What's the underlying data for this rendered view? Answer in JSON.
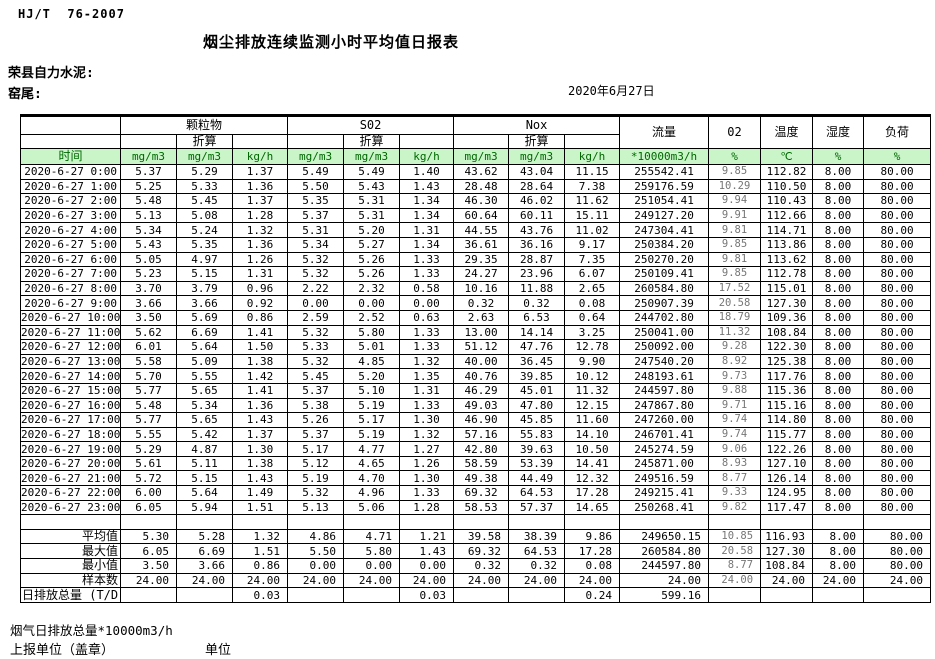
{
  "header": {
    "standard": "HJ/T  76-2007",
    "title": "烟尘排放连续监测小时平均值日报表",
    "company": "荣县自力水泥:",
    "location": "窑尾:",
    "date": "2020年6月27日"
  },
  "colors": {
    "unit_row_bg": "#c9f5c9",
    "unit_row_text": "#006600",
    "grid": "#000000"
  },
  "table": {
    "groups": {
      "time": "时间",
      "pm": "颗粒物",
      "so2": "S02",
      "nox": "Nox",
      "conv": "折算",
      "flow": "流量",
      "o2": "02",
      "temp": "温度",
      "humidity": "湿度",
      "load": "负荷"
    },
    "units": {
      "mg": "mg/m3",
      "kg": "kg/h",
      "flow": "*10000m3/h",
      "pct": "%",
      "temp": "℃"
    },
    "rows": [
      {
        "time": "2020-6-27 0:00",
        "v": [
          "5.37",
          "5.29",
          "1.37",
          "5.49",
          "5.49",
          "1.40",
          "43.62",
          "43.04",
          "11.15",
          "255542.41",
          "9.85",
          "112.82",
          "8.00",
          "80.00"
        ]
      },
      {
        "time": "2020-6-27 1:00",
        "v": [
          "5.25",
          "5.33",
          "1.36",
          "5.50",
          "5.43",
          "1.43",
          "28.48",
          "28.64",
          "7.38",
          "259176.59",
          "10.29",
          "110.50",
          "8.00",
          "80.00"
        ]
      },
      {
        "time": "2020-6-27 2:00",
        "v": [
          "5.48",
          "5.45",
          "1.37",
          "5.35",
          "5.31",
          "1.34",
          "46.30",
          "46.02",
          "11.62",
          "251054.41",
          "9.94",
          "110.43",
          "8.00",
          "80.00"
        ]
      },
      {
        "time": "2020-6-27 3:00",
        "v": [
          "5.13",
          "5.08",
          "1.28",
          "5.37",
          "5.31",
          "1.34",
          "60.64",
          "60.11",
          "15.11",
          "249127.20",
          "9.91",
          "112.66",
          "8.00",
          "80.00"
        ]
      },
      {
        "time": "2020-6-27 4:00",
        "v": [
          "5.34",
          "5.24",
          "1.32",
          "5.31",
          "5.20",
          "1.31",
          "44.55",
          "43.76",
          "11.02",
          "247304.41",
          "9.81",
          "114.71",
          "8.00",
          "80.00"
        ]
      },
      {
        "time": "2020-6-27 5:00",
        "v": [
          "5.43",
          "5.35",
          "1.36",
          "5.34",
          "5.27",
          "1.34",
          "36.61",
          "36.16",
          "9.17",
          "250384.20",
          "9.85",
          "113.86",
          "8.00",
          "80.00"
        ]
      },
      {
        "time": "2020-6-27 6:00",
        "v": [
          "5.05",
          "4.97",
          "1.26",
          "5.32",
          "5.26",
          "1.33",
          "29.35",
          "28.87",
          "7.35",
          "250270.20",
          "9.81",
          "113.62",
          "8.00",
          "80.00"
        ]
      },
      {
        "time": "2020-6-27 7:00",
        "v": [
          "5.23",
          "5.15",
          "1.31",
          "5.32",
          "5.26",
          "1.33",
          "24.27",
          "23.96",
          "6.07",
          "250109.41",
          "9.85",
          "112.78",
          "8.00",
          "80.00"
        ]
      },
      {
        "time": "2020-6-27 8:00",
        "v": [
          "3.70",
          "3.79",
          "0.96",
          "2.22",
          "2.32",
          "0.58",
          "10.16",
          "11.88",
          "2.65",
          "260584.80",
          "17.52",
          "115.01",
          "8.00",
          "80.00"
        ]
      },
      {
        "time": "2020-6-27 9:00",
        "v": [
          "3.66",
          "3.66",
          "0.92",
          "0.00",
          "0.00",
          "0.00",
          "0.32",
          "0.32",
          "0.08",
          "250907.39",
          "20.58",
          "127.30",
          "8.00",
          "80.00"
        ]
      },
      {
        "time": "2020-6-27 10:00",
        "v": [
          "3.50",
          "5.69",
          "0.86",
          "2.59",
          "2.52",
          "0.63",
          "2.63",
          "6.53",
          "0.64",
          "244702.80",
          "18.79",
          "109.36",
          "8.00",
          "80.00"
        ]
      },
      {
        "time": "2020-6-27 11:00",
        "v": [
          "5.62",
          "6.69",
          "1.41",
          "5.32",
          "5.80",
          "1.33",
          "13.00",
          "14.14",
          "3.25",
          "250041.00",
          "11.32",
          "108.84",
          "8.00",
          "80.00"
        ]
      },
      {
        "time": "2020-6-27 12:00",
        "v": [
          "6.01",
          "5.64",
          "1.50",
          "5.33",
          "5.01",
          "1.33",
          "51.12",
          "47.76",
          "12.78",
          "250092.00",
          "9.28",
          "122.30",
          "8.00",
          "80.00"
        ]
      },
      {
        "time": "2020-6-27 13:00",
        "v": [
          "5.58",
          "5.09",
          "1.38",
          "5.32",
          "4.85",
          "1.32",
          "40.00",
          "36.45",
          "9.90",
          "247540.20",
          "8.92",
          "125.38",
          "8.00",
          "80.00"
        ]
      },
      {
        "time": "2020-6-27 14:00",
        "v": [
          "5.70",
          "5.55",
          "1.42",
          "5.45",
          "5.20",
          "1.35",
          "40.76",
          "39.85",
          "10.12",
          "248193.61",
          "9.73",
          "117.76",
          "8.00",
          "80.00"
        ]
      },
      {
        "time": "2020-6-27 15:00",
        "v": [
          "5.77",
          "5.65",
          "1.41",
          "5.37",
          "5.10",
          "1.31",
          "46.29",
          "45.01",
          "11.32",
          "244597.80",
          "9.88",
          "115.36",
          "8.00",
          "80.00"
        ]
      },
      {
        "time": "2020-6-27 16:00",
        "v": [
          "5.48",
          "5.34",
          "1.36",
          "5.38",
          "5.19",
          "1.33",
          "49.03",
          "47.80",
          "12.15",
          "247867.80",
          "9.71",
          "115.16",
          "8.00",
          "80.00"
        ]
      },
      {
        "time": "2020-6-27 17:00",
        "v": [
          "5.77",
          "5.65",
          "1.43",
          "5.26",
          "5.17",
          "1.30",
          "46.90",
          "45.85",
          "11.60",
          "247260.00",
          "9.74",
          "114.80",
          "8.00",
          "80.00"
        ]
      },
      {
        "time": "2020-6-27 18:00",
        "v": [
          "5.55",
          "5.42",
          "1.37",
          "5.37",
          "5.19",
          "1.32",
          "57.16",
          "55.83",
          "14.10",
          "246701.41",
          "9.74",
          "115.77",
          "8.00",
          "80.00"
        ]
      },
      {
        "time": "2020-6-27 19:00",
        "v": [
          "5.29",
          "4.87",
          "1.30",
          "5.17",
          "4.77",
          "1.27",
          "42.80",
          "39.63",
          "10.50",
          "245274.59",
          "9.06",
          "122.26",
          "8.00",
          "80.00"
        ]
      },
      {
        "time": "2020-6-27 20:00",
        "v": [
          "5.61",
          "5.11",
          "1.38",
          "5.12",
          "4.65",
          "1.26",
          "58.59",
          "53.39",
          "14.41",
          "245871.00",
          "8.93",
          "127.10",
          "8.00",
          "80.00"
        ]
      },
      {
        "time": "2020-6-27 21:00",
        "v": [
          "5.72",
          "5.15",
          "1.43",
          "5.19",
          "4.70",
          "1.30",
          "49.38",
          "44.49",
          "12.32",
          "249516.59",
          "8.77",
          "126.14",
          "8.00",
          "80.00"
        ]
      },
      {
        "time": "2020-6-27 22:00",
        "v": [
          "6.00",
          "5.64",
          "1.49",
          "5.32",
          "4.96",
          "1.33",
          "69.32",
          "64.53",
          "17.28",
          "249215.41",
          "9.33",
          "124.95",
          "8.00",
          "80.00"
        ]
      },
      {
        "time": "2020-6-27 23:00",
        "v": [
          "6.05",
          "5.94",
          "1.51",
          "5.13",
          "5.06",
          "1.28",
          "58.53",
          "57.37",
          "14.65",
          "250268.41",
          "9.82",
          "117.47",
          "8.00",
          "80.00"
        ]
      }
    ],
    "summary": [
      {
        "label": "平均值",
        "v": [
          "5.30",
          "5.28",
          "1.32",
          "4.86",
          "4.71",
          "1.21",
          "39.58",
          "38.39",
          "9.86",
          "249650.15",
          "10.85",
          "116.93",
          "8.00",
          "80.00"
        ]
      },
      {
        "label": "最大值",
        "v": [
          "6.05",
          "6.69",
          "1.51",
          "5.50",
          "5.80",
          "1.43",
          "69.32",
          "64.53",
          "17.28",
          "260584.80",
          "20.58",
          "127.30",
          "8.00",
          "80.00"
        ]
      },
      {
        "label": "最小值",
        "v": [
          "3.50",
          "3.66",
          "0.86",
          "0.00",
          "0.00",
          "0.00",
          "0.32",
          "0.32",
          "0.08",
          "244597.80",
          "8.77",
          "108.84",
          "8.00",
          "80.00"
        ]
      },
      {
        "label": "样本数",
        "v": [
          "24.00",
          "24.00",
          "24.00",
          "24.00",
          "24.00",
          "24.00",
          "24.00",
          "24.00",
          "24.00",
          "24.00",
          "24.00",
          "24.00",
          "24.00",
          "24.00"
        ]
      }
    ],
    "total_row": {
      "label": "日排放总量 (T/D)",
      "v": [
        "",
        "",
        "0.03",
        "",
        "",
        "0.03",
        "",
        "",
        "0.24",
        "599.16",
        "",
        "",
        "",
        ""
      ]
    }
  },
  "footer": {
    "flue_total": "烟气日排放总量*10000m3/h",
    "report_unit": "上报单位（盖章）",
    "unit": "单位"
  }
}
